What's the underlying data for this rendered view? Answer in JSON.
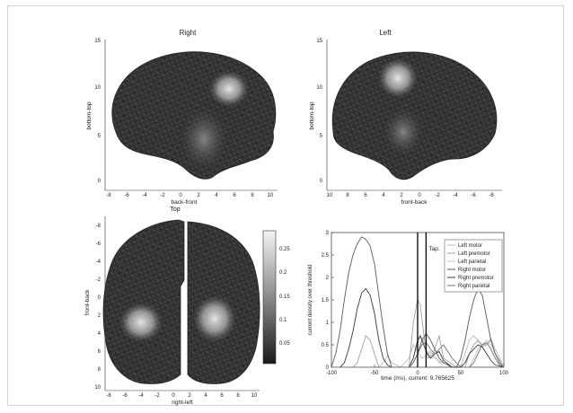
{
  "figure_bg": "#ffffff",
  "panels": {
    "right": {
      "title": "Right",
      "xlabel": "back-front",
      "ylabel": "bottom-top",
      "xticks": [
        "-8",
        "-6",
        "-4",
        "-2",
        "0",
        "2",
        "4",
        "6",
        "8",
        "10"
      ],
      "yticks": [
        "0",
        "5",
        "10",
        "15"
      ]
    },
    "left": {
      "title": "Left",
      "xlabel": "front-back",
      "ylabel": "bottom-top",
      "xticks": [
        "10",
        "8",
        "6",
        "4",
        "2",
        "0",
        "-2",
        "-4",
        "-6",
        "-8"
      ],
      "yticks": [
        "0",
        "5",
        "10",
        "15"
      ]
    },
    "top": {
      "title": "Top",
      "xlabel": "right-left",
      "ylabel": "front-back",
      "xticks": [
        "-8",
        "-6",
        "-4",
        "-2",
        "0",
        "2",
        "4",
        "6",
        "8",
        "10"
      ],
      "yticks": [
        "-8",
        "-6",
        "-4",
        "-2",
        "0",
        "2",
        "4",
        "6",
        "8",
        "10"
      ]
    },
    "colorbar": {
      "ticks": [
        "0.05",
        "0.1",
        "0.15",
        "0.2",
        "0.25"
      ],
      "range": [
        0,
        0.28
      ]
    }
  },
  "chart_data": {
    "type": "line",
    "xlabel": "time (ms), current: 9.765625",
    "ylabel": "current density over threshold",
    "xlim": [
      -100,
      100
    ],
    "ylim": [
      0,
      3
    ],
    "xticks": [
      "-100",
      "-50",
      "0",
      "50",
      "100"
    ],
    "yticks": [
      "0",
      "0.5",
      "1",
      "1.5",
      "2",
      "2.5",
      "3"
    ],
    "annotation": "Tap.",
    "vlines": [
      0,
      9.77
    ],
    "legend_position": "top-right",
    "series": [
      {
        "name": "Left motor",
        "color": "#b8b8b8",
        "x": [
          -100,
          -45,
          -40,
          -35,
          -30,
          -20,
          -10,
          -5,
          0,
          5,
          10,
          15,
          20,
          25,
          30,
          35,
          40,
          50,
          55,
          60,
          65,
          70,
          75,
          80,
          85,
          90,
          95,
          100
        ],
        "y": [
          0,
          0,
          0.1,
          0.25,
          0.1,
          0,
          0.2,
          0.5,
          0.35,
          0.2,
          0.25,
          0.35,
          0.25,
          0.1,
          0.1,
          0.05,
          0,
          0,
          0.3,
          0.6,
          0.7,
          0.6,
          0.45,
          0.5,
          0.65,
          0.4,
          0.2,
          0
        ]
      },
      {
        "name": "Left premotor",
        "color": "#a0a0a0",
        "x": [
          -100,
          -75,
          -70,
          -65,
          -60,
          -55,
          -50,
          -45,
          -30,
          -10,
          -5,
          0,
          3,
          8,
          12,
          18,
          25,
          30,
          45,
          55,
          60,
          65,
          70,
          75,
          80,
          85,
          90,
          100
        ],
        "y": [
          0,
          0,
          0.1,
          0.4,
          0.7,
          0.6,
          0.3,
          0,
          0,
          0,
          1.0,
          1.5,
          1.4,
          0.6,
          0.2,
          0.3,
          0.7,
          0.2,
          0,
          0,
          0.3,
          0.5,
          0.6,
          0.5,
          0.5,
          0.6,
          0.3,
          0
        ]
      },
      {
        "name": "Left parietal",
        "color": "#c4c4c4",
        "x": [
          -100,
          -60,
          -10,
          -5,
          0,
          3,
          6,
          10,
          15,
          20,
          25,
          30,
          40,
          60,
          65,
          70,
          75,
          80,
          85,
          90,
          100
        ],
        "y": [
          0,
          0,
          0,
          0.2,
          0.5,
          0.7,
          0.6,
          0.4,
          0.3,
          0.2,
          0.15,
          0.1,
          0,
          0,
          0.2,
          0.4,
          0.5,
          0.6,
          0.5,
          0.3,
          0
        ]
      },
      {
        "name": "Right motor",
        "color": "#5a5a5a",
        "x": [
          -100,
          -95,
          -90,
          -85,
          -80,
          -75,
          -70,
          -65,
          -60,
          -55,
          -50,
          -45,
          -40,
          -35,
          -30,
          -10,
          -5,
          0,
          5,
          10,
          15,
          20,
          25,
          30,
          35,
          40,
          45,
          50,
          55,
          60,
          65,
          70,
          75,
          80,
          85,
          90,
          95,
          100
        ],
        "y": [
          0,
          0.3,
          0.8,
          1.5,
          2.1,
          2.5,
          2.75,
          2.9,
          2.85,
          2.7,
          2.3,
          1.6,
          0.9,
          0.3,
          0,
          0,
          0.1,
          0.3,
          0.6,
          0.75,
          0.6,
          0.4,
          0.2,
          0.1,
          0.05,
          0,
          0,
          0.2,
          0.6,
          1.1,
          1.5,
          1.75,
          1.6,
          1.1,
          0.6,
          0.3,
          0.1,
          0
        ]
      },
      {
        "name": "Right premotor",
        "color": "#383838",
        "x": [
          -100,
          -90,
          -85,
          -80,
          -75,
          -70,
          -65,
          -60,
          -55,
          -50,
          -45,
          -40,
          -35,
          -30,
          -20,
          -10,
          -5,
          0,
          3,
          6,
          10,
          15,
          20,
          25,
          30,
          40,
          50,
          55,
          60,
          65,
          70,
          75,
          80,
          85,
          90,
          100
        ],
        "y": [
          0,
          0,
          0.1,
          0.4,
          0.8,
          1.3,
          1.65,
          1.75,
          1.6,
          1.2,
          0.6,
          0.2,
          0.05,
          0,
          0,
          0,
          0.2,
          0.6,
          0.7,
          0.55,
          0.35,
          0.2,
          0.3,
          0.35,
          0.15,
          0,
          0,
          0.1,
          0.3,
          0.4,
          0.5,
          0.45,
          0.3,
          0.15,
          0.05,
          0
        ]
      },
      {
        "name": "Right parietal",
        "color": "#707070",
        "x": [
          -100,
          -20,
          -10,
          -5,
          0,
          5,
          10,
          15,
          20,
          25,
          30,
          35,
          40,
          45,
          50,
          60,
          65,
          70,
          75,
          80,
          85,
          90,
          95,
          100
        ],
        "y": [
          0,
          0,
          0,
          0.1,
          0.3,
          0.5,
          0.55,
          0.4,
          0.3,
          0.4,
          0.5,
          0.35,
          0.2,
          0.1,
          0,
          0,
          0.1,
          0.3,
          0.5,
          0.55,
          0.4,
          0.2,
          0.05,
          0
        ]
      }
    ]
  }
}
